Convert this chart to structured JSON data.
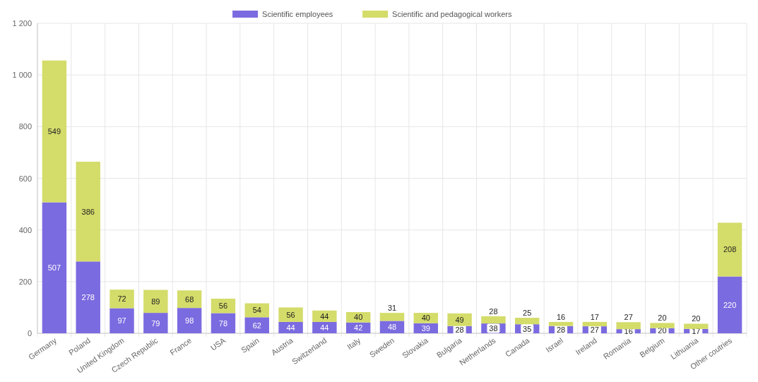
{
  "chart_data": {
    "type": "bar",
    "stacked": true,
    "grid": true,
    "legend": "top",
    "data_labels": true,
    "categories": [
      "Germany",
      "Poland",
      "United Kingdom",
      "Czech Republic",
      "France",
      "USA",
      "Spain",
      "Austria",
      "Switzerland",
      "Italy",
      "Sweden",
      "Slovakia",
      "Bulgaria",
      "Netherlands",
      "Canada",
      "Israel",
      "Ireland",
      "Romania",
      "Belgium",
      "Lithuania",
      "Other coutries"
    ],
    "series": [
      {
        "name": "Scientific employees",
        "color": "#7b6be0",
        "values": [
          507,
          278,
          97,
          79,
          98,
          78,
          62,
          44,
          44,
          42,
          48,
          39,
          28,
          38,
          35,
          28,
          27,
          16,
          20,
          17,
          220
        ]
      },
      {
        "name": "Scientific and pedagogical workers",
        "color": "#d4dc6a",
        "values": [
          549,
          386,
          72,
          89,
          68,
          56,
          54,
          56,
          44,
          40,
          31,
          40,
          49,
          28,
          25,
          16,
          17,
          27,
          20,
          20,
          208
        ]
      }
    ],
    "ylim": [
      0,
      1200
    ],
    "yticks": [
      0,
      200,
      400,
      600,
      800,
      {
        "value": 1000,
        "label": "1 000"
      },
      {
        "value": 1200,
        "label": "1 200"
      }
    ]
  }
}
